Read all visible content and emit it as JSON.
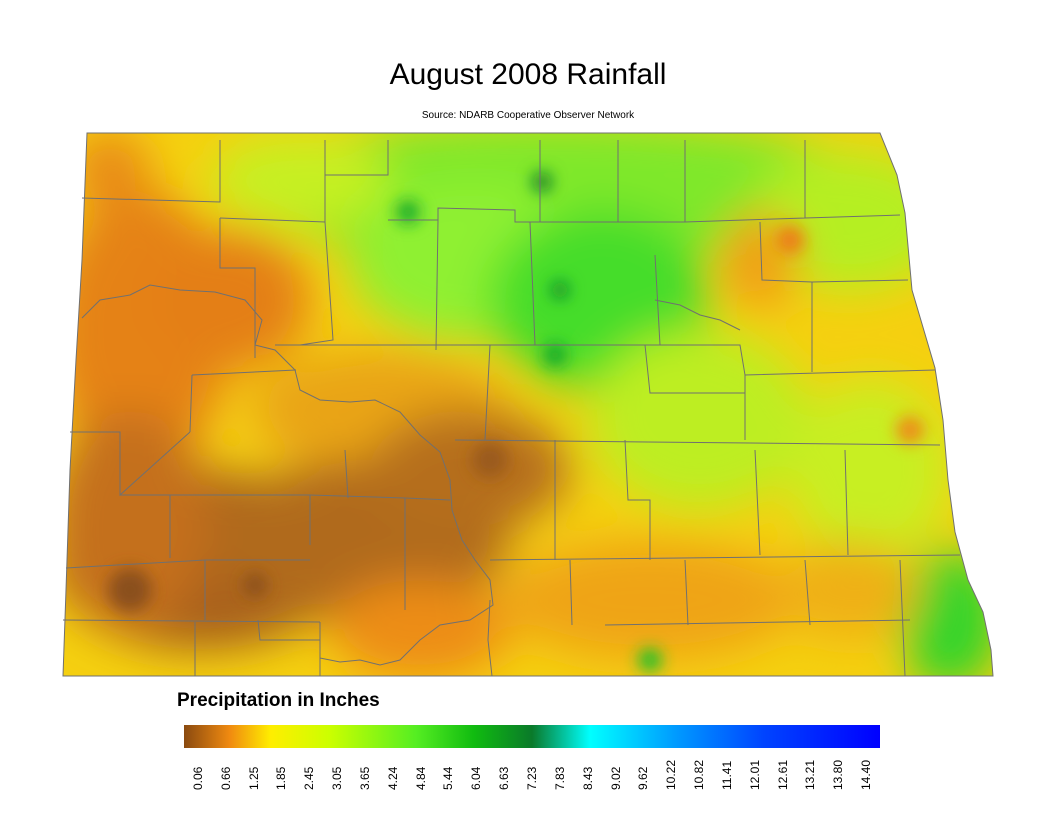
{
  "title": "August 2008 Rainfall",
  "subtitle": "Source: NDARB Cooperative Observer Network",
  "legend": {
    "title": "Precipitation in Inches",
    "ticks": [
      "0.06",
      "0.66",
      "1.25",
      "1.85",
      "2.45",
      "3.05",
      "3.65",
      "4.24",
      "4.84",
      "5.44",
      "6.04",
      "6.63",
      "7.23",
      "7.83",
      "8.43",
      "9.02",
      "9.62",
      "10.22",
      "10.82",
      "11.41",
      "12.01",
      "12.61",
      "13.21",
      "13.80",
      "14.40"
    ],
    "color_stops": [
      {
        "value": 0.06,
        "color": "#8a4a10"
      },
      {
        "value": 1.0,
        "color": "#f08a10"
      },
      {
        "value": 1.85,
        "color": "#ffee00"
      },
      {
        "value": 3.05,
        "color": "#ccff00"
      },
      {
        "value": 4.84,
        "color": "#55ee22"
      },
      {
        "value": 6.04,
        "color": "#10bb10"
      },
      {
        "value": 7.23,
        "color": "#0a7a2a"
      },
      {
        "value": 8.43,
        "color": "#00ffff"
      },
      {
        "value": 10.22,
        "color": "#0099ff"
      },
      {
        "value": 12.01,
        "color": "#0044ff"
      },
      {
        "value": 14.4,
        "color": "#0000ff"
      }
    ]
  },
  "map_colors": {
    "dry": "#8f5a22",
    "orange": "#ef8a1a",
    "yellow": "#f3e70d",
    "lime": "#b8f21a",
    "green": "#3fdc2a",
    "dark_green": "#128a2a",
    "county_lines": "#707070"
  }
}
